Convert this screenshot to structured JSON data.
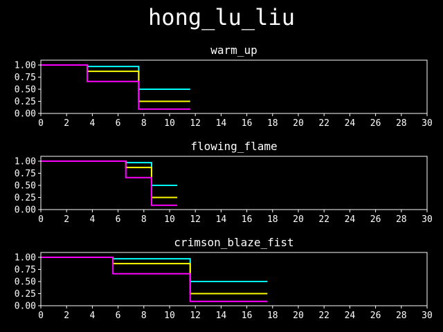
{
  "figure": {
    "title": "hong_lu_liu",
    "background": "#000000",
    "foreground": "#ffffff"
  },
  "chart_data": [
    {
      "type": "line",
      "step": "post",
      "title": "warm_up",
      "xlabel": "",
      "ylabel": "",
      "xlim": [
        0,
        30
      ],
      "ylim": [
        0,
        1.1
      ],
      "xticks": [
        0,
        2,
        4,
        6,
        8,
        10,
        12,
        14,
        16,
        18,
        20,
        22,
        24,
        26,
        28,
        30
      ],
      "yticks": [
        "0.00",
        "0.25",
        "0.50",
        "0.75",
        "1.00"
      ],
      "grid": false,
      "series": [
        {
          "color": "#00ffff",
          "x": [
            0,
            3.6,
            7.6,
            11.6
          ],
          "y": [
            1.0,
            0.97,
            0.5,
            0.5
          ]
        },
        {
          "color": "#ffff00",
          "x": [
            0,
            3.6,
            7.6,
            11.6
          ],
          "y": [
            1.0,
            0.87,
            0.25,
            0.25
          ]
        },
        {
          "color": "#ff00ff",
          "x": [
            0,
            3.6,
            7.6,
            11.6
          ],
          "y": [
            1.0,
            0.66,
            0.09,
            0.09
          ]
        }
      ]
    },
    {
      "type": "line",
      "step": "post",
      "title": "flowing_flame",
      "xlabel": "",
      "ylabel": "",
      "xlim": [
        0,
        30
      ],
      "ylim": [
        0,
        1.1
      ],
      "xticks": [
        0,
        2,
        4,
        6,
        8,
        10,
        12,
        14,
        16,
        18,
        20,
        22,
        24,
        26,
        28,
        30
      ],
      "yticks": [
        "0.00",
        "0.25",
        "0.50",
        "0.75",
        "1.00"
      ],
      "grid": false,
      "series": [
        {
          "color": "#00ffff",
          "x": [
            0,
            6.6,
            8.6,
            10.6
          ],
          "y": [
            1.0,
            0.97,
            0.5,
            0.5
          ]
        },
        {
          "color": "#ffff00",
          "x": [
            0,
            6.6,
            8.6,
            10.6
          ],
          "y": [
            1.0,
            0.87,
            0.25,
            0.25
          ]
        },
        {
          "color": "#ff00ff",
          "x": [
            0,
            6.6,
            8.6,
            10.6
          ],
          "y": [
            1.0,
            0.66,
            0.09,
            0.09
          ]
        }
      ]
    },
    {
      "type": "line",
      "step": "post",
      "title": "crimson_blaze_fist",
      "xlabel": "",
      "ylabel": "",
      "xlim": [
        0,
        30
      ],
      "ylim": [
        0,
        1.1
      ],
      "xticks": [
        0,
        2,
        4,
        6,
        8,
        10,
        12,
        14,
        16,
        18,
        20,
        22,
        24,
        26,
        28,
        30
      ],
      "yticks": [
        "0.00",
        "0.25",
        "0.50",
        "0.75",
        "1.00"
      ],
      "grid": false,
      "series": [
        {
          "color": "#00ffff",
          "x": [
            0,
            5.6,
            11.6,
            17.6
          ],
          "y": [
            1.0,
            0.97,
            0.5,
            0.5
          ]
        },
        {
          "color": "#ffff00",
          "x": [
            0,
            5.6,
            11.6,
            17.6
          ],
          "y": [
            1.0,
            0.87,
            0.25,
            0.25
          ]
        },
        {
          "color": "#ff00ff",
          "x": [
            0,
            5.6,
            11.6,
            17.6
          ],
          "y": [
            1.0,
            0.66,
            0.09,
            0.09
          ]
        }
      ]
    }
  ]
}
